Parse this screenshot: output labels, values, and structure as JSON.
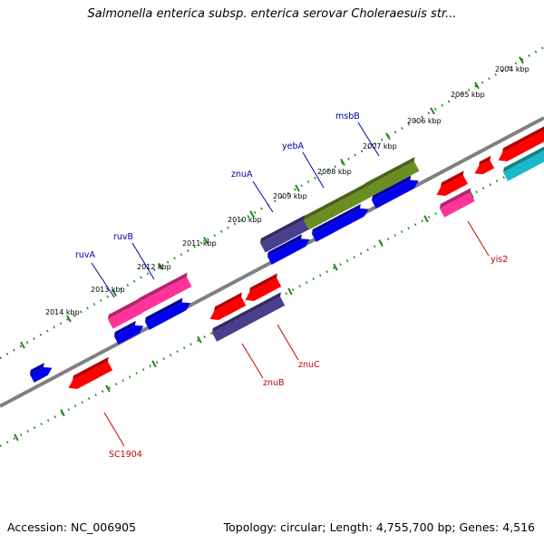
{
  "title": "Salmonella enterica subsp. enterica serovar Choleraesuis str...",
  "footer": {
    "accession": "Accession: NC_006905",
    "stats": "Topology: circular; Length: 4,755,700 bp; Genes: 4,516"
  },
  "kbp_labels": [
    "2014 kbp",
    "2013 kbp",
    "2012 kbp",
    "2011 kbp",
    "2010 kbp",
    "2009 kbp",
    "2008 kbp",
    "2007 kbp",
    "2006 kbp",
    "2005 kbp",
    "2004 kbp"
  ],
  "gene_labels": {
    "ruvA": "ruvA",
    "ruvB": "ruvB",
    "znuA": "znuA",
    "yebA": "yebA",
    "msbB": "msbB",
    "SC1904": "SC1904",
    "znuB": "znuB",
    "znuC": "znuC",
    "yis2": "yis2"
  },
  "colors": {
    "backbone": "#808080",
    "tick_dots": "#1a8a1a",
    "red_gene": "#ff0000",
    "blue_gene": "#0000ee",
    "pink_gene": "#ff3399",
    "olive_gene": "#6b8e23",
    "slate_gene": "#4a3f8c",
    "cyan_gene": "#1ab8c8",
    "label_blue": "#0000aa",
    "label_red": "#cc0000"
  }
}
